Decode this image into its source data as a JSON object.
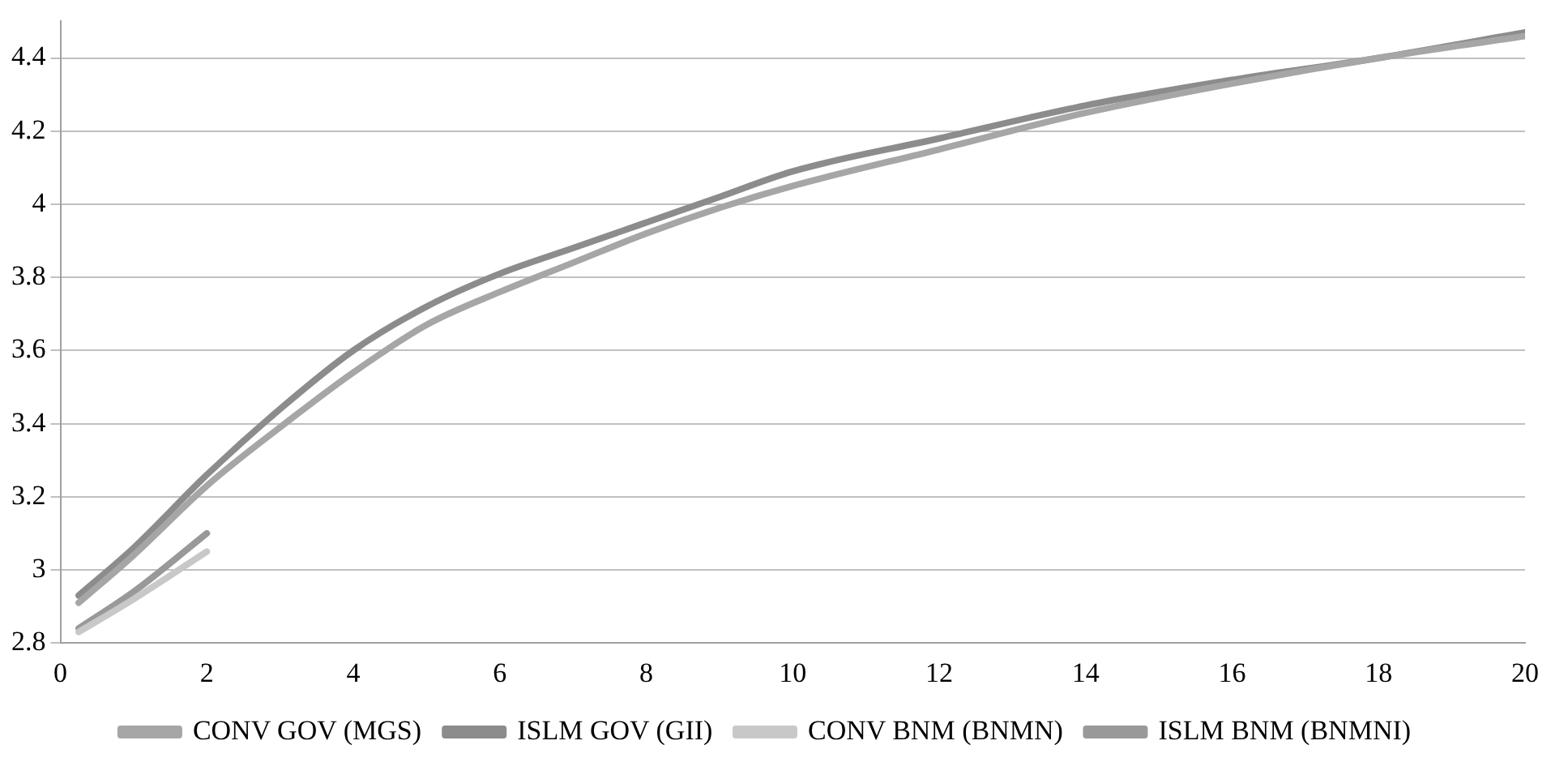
{
  "chart_data": {
    "type": "line",
    "xlim": [
      0,
      20
    ],
    "xticks": [
      0,
      2,
      4,
      6,
      8,
      10,
      12,
      14,
      16,
      18,
      20
    ],
    "ylim": [
      2.8,
      4.5
    ],
    "yticks": [
      {
        "value": 2.8,
        "label": "2.8"
      },
      {
        "value": 3,
        "label": "3"
      },
      {
        "value": 3.2,
        "label": "3.2"
      },
      {
        "value": 3.4,
        "label": "3.4"
      },
      {
        "value": 3.6,
        "label": "3.6"
      },
      {
        "value": 3.8,
        "label": "3.8"
      },
      {
        "value": 4,
        "label": "4"
      },
      {
        "value": 4.2,
        "label": "4.2"
      },
      {
        "value": 4.4,
        "label": "4.4"
      }
    ],
    "grid": "y",
    "legend": "bottom",
    "marker": "none",
    "line_style": "solid",
    "series": [
      {
        "name": "CONV GOV (MGS)",
        "color": "#a6a6a6",
        "x": [
          0.25,
          1,
          2,
          3,
          4,
          5,
          6,
          7,
          8,
          9,
          10,
          12,
          14,
          16,
          18,
          20
        ],
        "values": [
          2.91,
          3.04,
          3.23,
          3.39,
          3.54,
          3.67,
          3.76,
          3.84,
          3.92,
          3.99,
          4.05,
          4.15,
          4.25,
          4.33,
          4.4,
          4.46
        ]
      },
      {
        "name": "ISLM GOV (GII)",
        "color": "#8c8c8c",
        "x": [
          0.25,
          1,
          2,
          3,
          4,
          5,
          6,
          7,
          8,
          9,
          10,
          12,
          14,
          16,
          18,
          20
        ],
        "values": [
          2.93,
          3.06,
          3.26,
          3.44,
          3.6,
          3.72,
          3.81,
          3.88,
          3.95,
          4.02,
          4.09,
          4.18,
          4.27,
          4.34,
          4.4,
          4.47
        ]
      },
      {
        "name": "CONV BNM (BNMN)",
        "color": "#c8c8c8",
        "x": [
          0.25,
          1,
          2
        ],
        "values": [
          2.83,
          2.92,
          3.05
        ]
      },
      {
        "name": "ISLM BNM (BNMNI)",
        "color": "#999999",
        "x": [
          0.25,
          1,
          2
        ],
        "values": [
          2.84,
          2.94,
          3.1
        ]
      }
    ]
  }
}
